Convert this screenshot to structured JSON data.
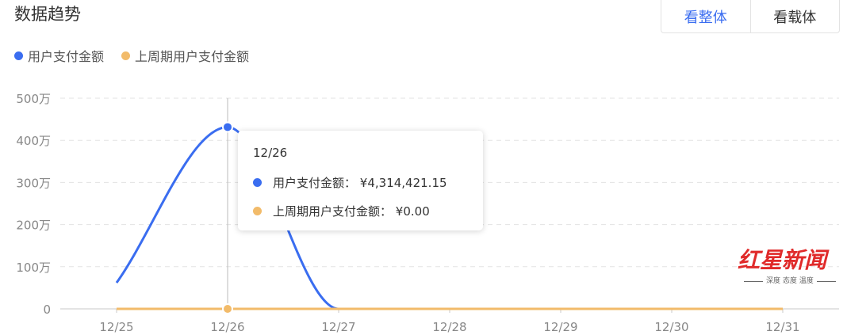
{
  "header": {
    "title": "数据趋势",
    "buttons": [
      {
        "label": "看整体",
        "active": true
      },
      {
        "label": "看载体",
        "active": false
      }
    ]
  },
  "colors": {
    "accent": "#3a6df0",
    "series1": "#3a6df0",
    "series2": "#f2bb6a"
  },
  "chart_data": {
    "type": "line",
    "categories": [
      "12/25",
      "12/26",
      "12/27",
      "12/28",
      "12/29",
      "12/30",
      "12/31"
    ],
    "series": [
      {
        "name": "用户支付金额",
        "values": [
          620000,
          4314421.15,
          0,
          0,
          0,
          0,
          0
        ],
        "color": "#3a6df0"
      },
      {
        "name": "上周期用户支付金额",
        "values": [
          0,
          0,
          0,
          0,
          0,
          0,
          0
        ],
        "color": "#f2bb6a"
      }
    ],
    "yticks": [
      "0",
      "100万",
      "200万",
      "300万",
      "400万",
      "500万"
    ],
    "ylim": [
      0,
      5000000
    ],
    "grid": true,
    "legend": "top-left",
    "smooth": true
  },
  "tooltip": {
    "date": "12/26",
    "rows": [
      {
        "label": "用户支付金额：",
        "value": "¥4,314,421.15"
      },
      {
        "label": "上周期用户支付金额：",
        "value": "¥0.00"
      }
    ]
  },
  "watermark": {
    "logo": "红星新闻",
    "slogan": "深度 态度 温度"
  }
}
